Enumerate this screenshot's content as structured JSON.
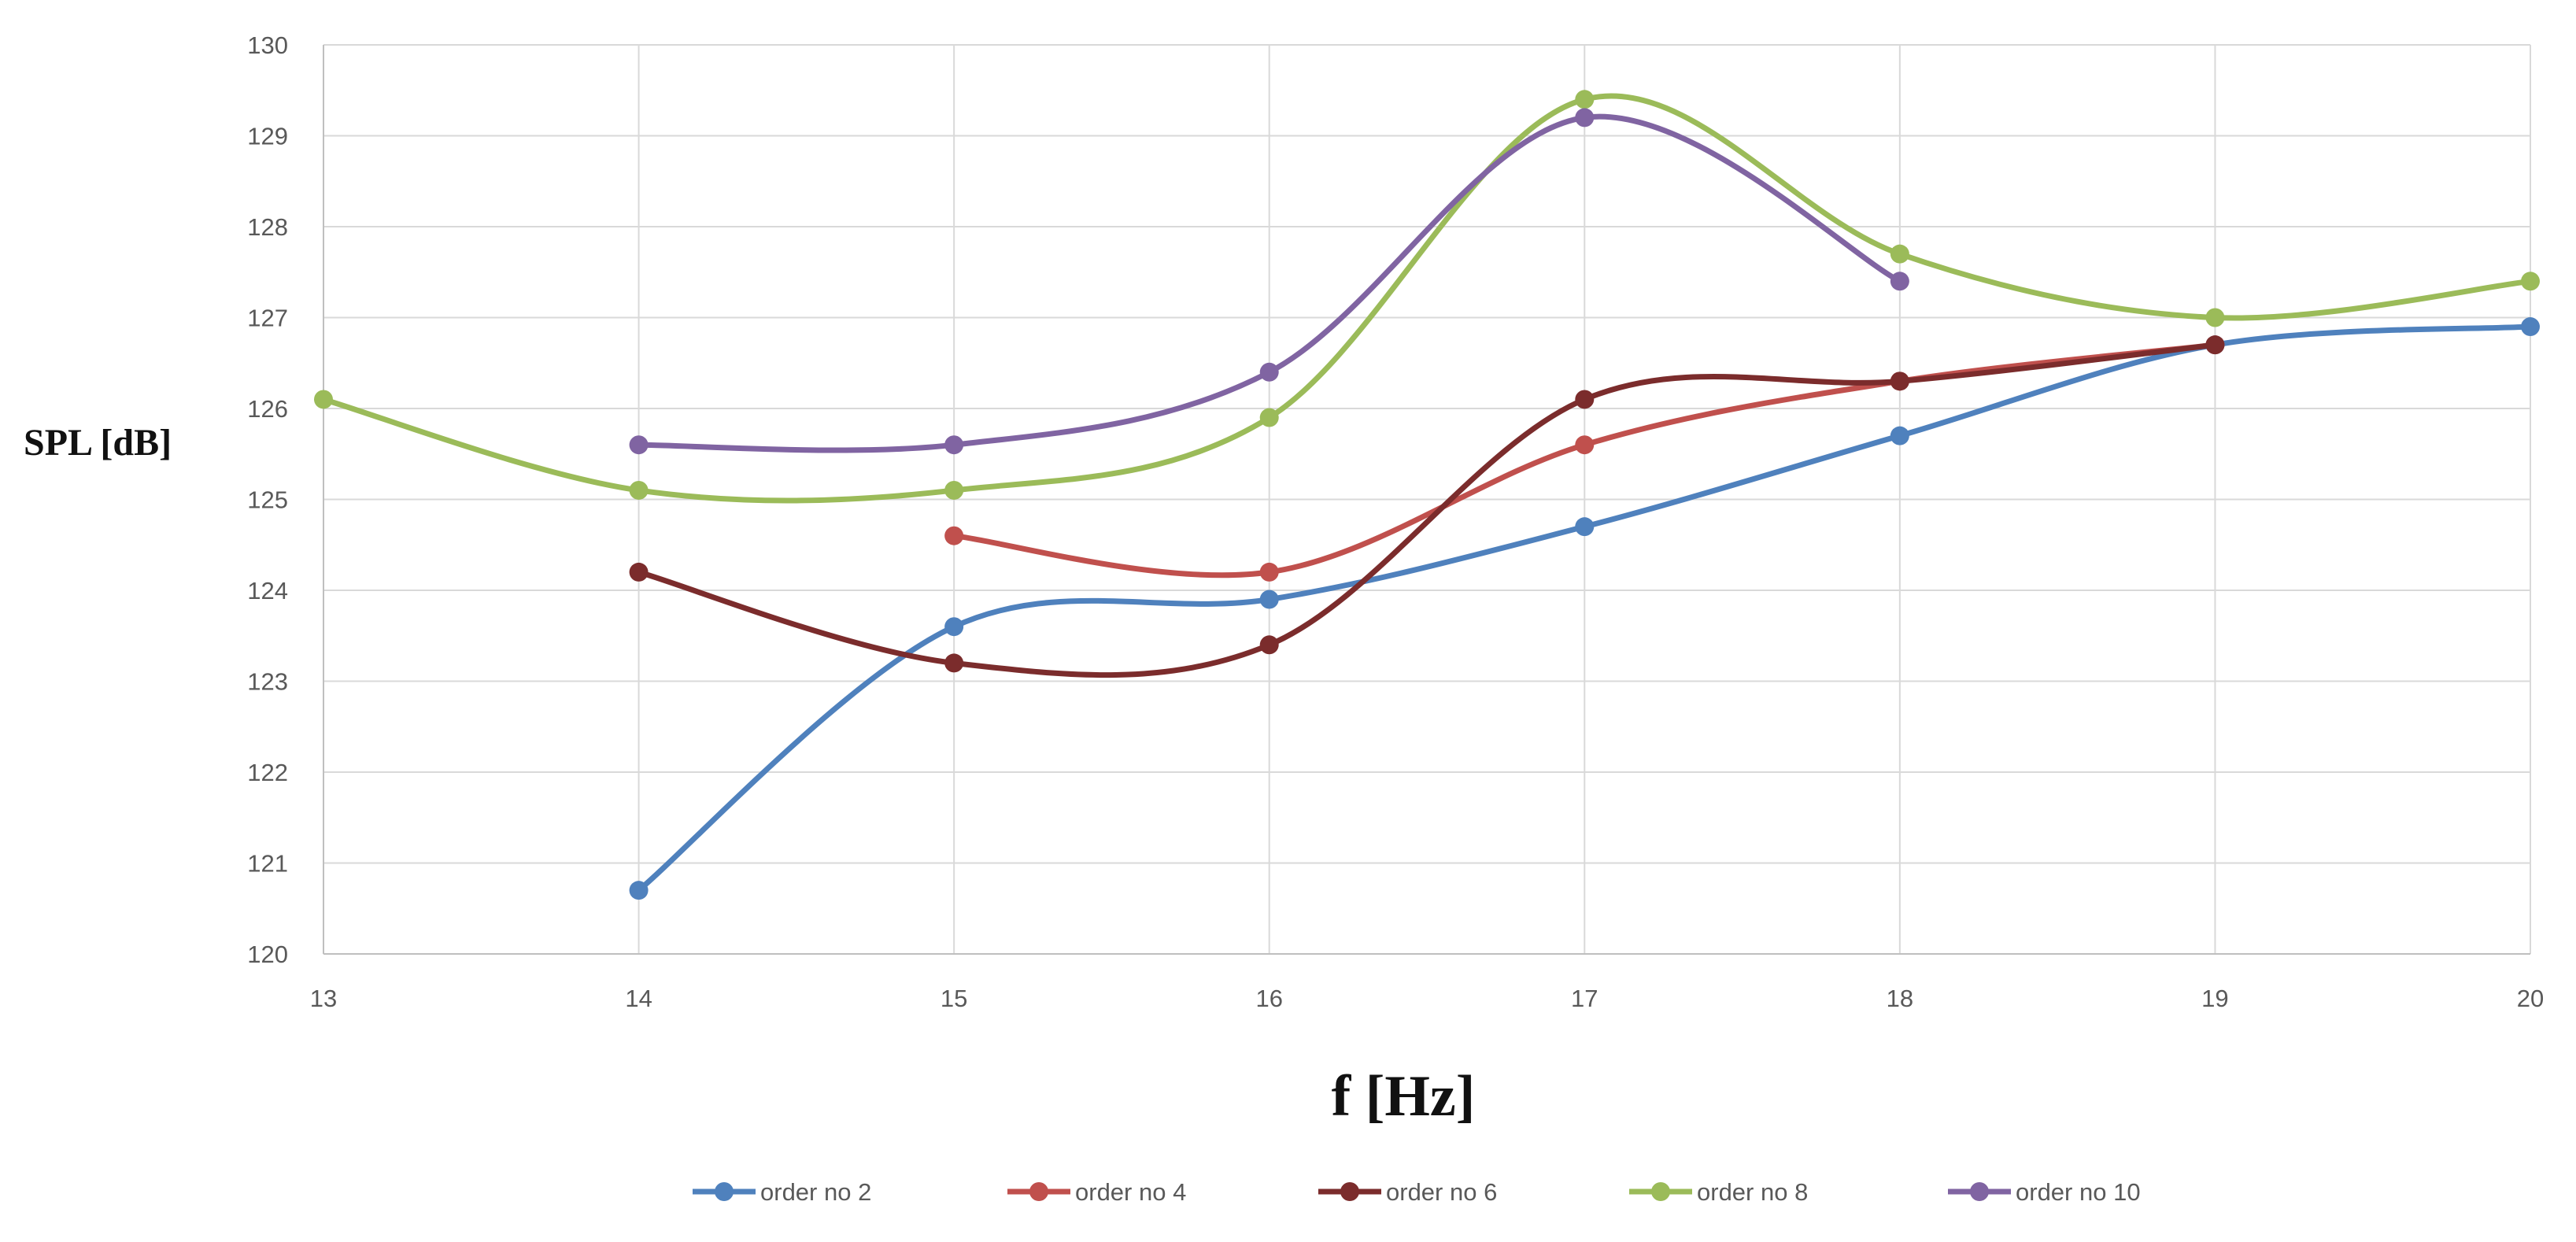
{
  "chart_data": {
    "type": "line",
    "smooth": true,
    "title": "",
    "xlabel": "f [Hz]",
    "ylabel": "SPL [dB]",
    "xlim": [
      13,
      20
    ],
    "ylim": [
      120,
      130
    ],
    "x_ticks": [
      "13",
      "14",
      "15",
      "16",
      "17",
      "18",
      "19",
      "20"
    ],
    "y_ticks": [
      "120",
      "121",
      "122",
      "123",
      "124",
      "125",
      "126",
      "127",
      "128",
      "129",
      "130"
    ],
    "grid": true,
    "legend_position": "bottom",
    "series": [
      {
        "name": "order no 2",
        "color": "#4f81bd",
        "points": [
          [
            14,
            120.7
          ],
          [
            15,
            123.6
          ],
          [
            16,
            123.9
          ],
          [
            17,
            124.7
          ],
          [
            18,
            125.7
          ],
          [
            19,
            126.7
          ],
          [
            20,
            126.9
          ]
        ]
      },
      {
        "name": "order no 4",
        "color": "#c0504d",
        "points": [
          [
            15,
            124.6
          ],
          [
            16,
            124.2
          ],
          [
            17,
            125.6
          ],
          [
            18,
            126.3
          ],
          [
            19,
            126.7
          ]
        ]
      },
      {
        "name": "order no 6",
        "color": "#7b2c2c",
        "points": [
          [
            14,
            124.2
          ],
          [
            15,
            123.2
          ],
          [
            16,
            123.4
          ],
          [
            17,
            126.1
          ],
          [
            18,
            126.3
          ],
          [
            19,
            126.7
          ]
        ]
      },
      {
        "name": "order no 8",
        "color": "#9bbb59",
        "points": [
          [
            13,
            126.1
          ],
          [
            14,
            125.1
          ],
          [
            15,
            125.1
          ],
          [
            16,
            125.9
          ],
          [
            17,
            129.4
          ],
          [
            18,
            127.7
          ],
          [
            19,
            127.0
          ],
          [
            20,
            127.4
          ]
        ]
      },
      {
        "name": "order no 10",
        "color": "#8064a2",
        "points": [
          [
            14,
            125.6
          ],
          [
            15,
            125.6
          ],
          [
            16,
            126.4
          ],
          [
            17,
            129.2
          ],
          [
            18,
            127.4
          ]
        ]
      }
    ]
  }
}
